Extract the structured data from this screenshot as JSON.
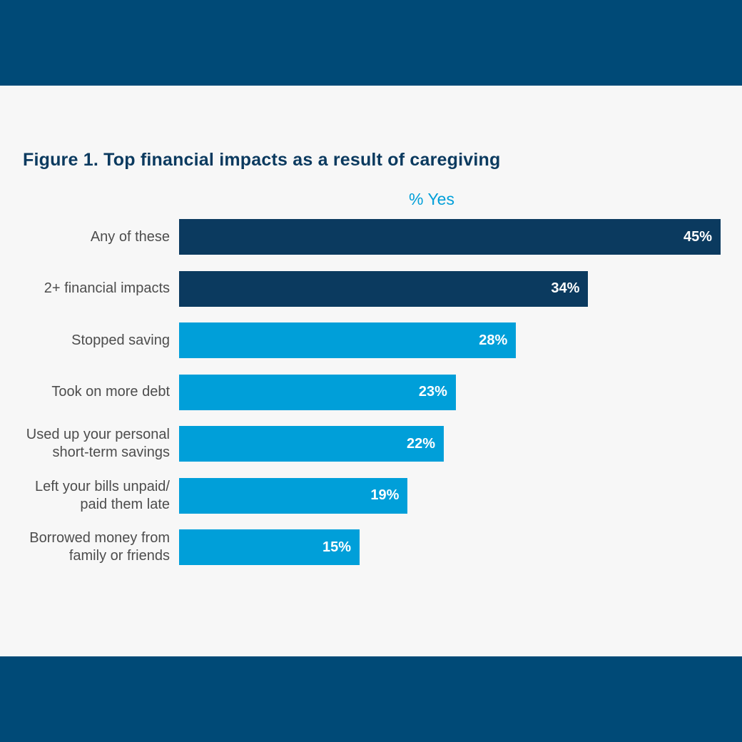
{
  "colors": {
    "band": "#004a77",
    "background": "#f7f7f7",
    "dark_bar": "#0b3a5f",
    "light_bar": "#009fd9",
    "title": "#0b3a5f",
    "series_label": "#009fd9"
  },
  "chart_data": {
    "type": "bar",
    "orientation": "horizontal",
    "title": "Figure 1. Top financial impacts as a result of caregiving",
    "series_name": "% Yes",
    "categories": [
      "Any of these",
      "2+ financial impacts",
      "Stopped saving",
      "Took on more debt",
      "Used up your personal\nshort-term savings",
      "Left your bills unpaid/\npaid them late",
      "Borrowed money from\nfamily or friends"
    ],
    "values": [
      45,
      34,
      28,
      23,
      22,
      19,
      15
    ],
    "value_labels": [
      "45%",
      "34%",
      "28%",
      "23%",
      "22%",
      "19%",
      "15%"
    ],
    "bar_colors": [
      "#0b3a5f",
      "#0b3a5f",
      "#009fd9",
      "#009fd9",
      "#009fd9",
      "#009fd9",
      "#009fd9"
    ],
    "xlim": [
      0,
      45
    ],
    "grid": false
  }
}
